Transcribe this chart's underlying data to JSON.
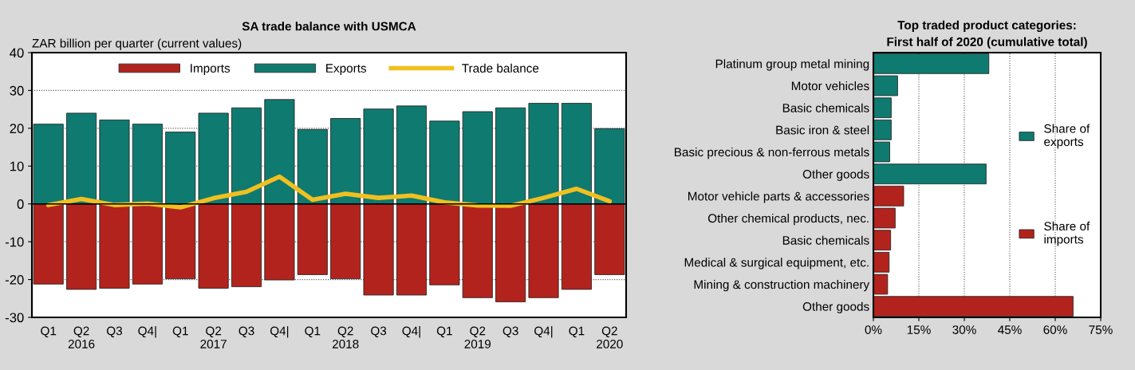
{
  "chart_data": [
    {
      "type": "bar",
      "title": "SA trade balance with USMCA",
      "ylabel": "ZAR billion per quarter (current values)",
      "categories": [
        "Q1",
        "Q2\n2016",
        "Q3",
        "Q4|",
        "Q1",
        "Q2\n2017",
        "Q3",
        "Q4|",
        "Q1",
        "Q2\n2018",
        "Q3",
        "Q4|",
        "Q1",
        "Q2\n2019",
        "Q3",
        "Q4|",
        "Q1",
        "Q2\n2020"
      ],
      "stacked": true,
      "series": [
        {
          "name": "Imports",
          "color": "#b3231d",
          "values": [
            -21.2,
            -22.6,
            -22.3,
            -21.2,
            -19.8,
            -22.3,
            -21.9,
            -20.1,
            -18.7,
            -19.8,
            -24.1,
            -24.1,
            -21.4,
            -24.8,
            -25.9,
            -24.8,
            -22.6,
            -18.7
          ]
        },
        {
          "name": "Exports",
          "color": "#0f7a70",
          "values": [
            21.1,
            24.0,
            22.2,
            21.1,
            19.0,
            24.0,
            25.4,
            27.6,
            19.7,
            22.6,
            25.1,
            25.9,
            21.9,
            24.4,
            25.4,
            26.6,
            26.6,
            19.9
          ]
        },
        {
          "name": "Trade balance",
          "type": "line",
          "color": "#f0c020",
          "values": [
            -0.3,
            1.3,
            -0.3,
            0.1,
            -0.9,
            1.5,
            3.2,
            7.2,
            1.1,
            2.7,
            1.6,
            2.2,
            0.4,
            -0.4,
            -0.5,
            1.6,
            4.0,
            0.7
          ]
        }
      ],
      "ylim": [
        -30,
        40
      ],
      "yticks": [
        -30,
        -20,
        -10,
        0,
        10,
        20,
        30,
        40
      ],
      "grid": "y",
      "legend": "top"
    },
    {
      "type": "bar",
      "orientation": "horizontal",
      "stacked": true,
      "title": "Top traded product categories:\nFirst half of 2020 (cumulative total)",
      "categories": [
        "Platinum group metal mining",
        "Motor vehicles",
        "Basic chemicals",
        "Basic iron & steel",
        "Basic precious & non-ferrous metals",
        "Other goods",
        "Motor vehicle parts & accessories",
        "Other chemical products, nec.",
        "Basic chemicals",
        "Medical & surgical equipment, etc.",
        "Mining & construction machinery",
        "Other goods"
      ],
      "series": [
        {
          "name": "Share of\nexports",
          "color": "#0f7a70",
          "values": [
            38.1,
            8.0,
            5.9,
            5.9,
            5.4,
            37.2,
            null,
            null,
            null,
            null,
            null,
            null
          ]
        },
        {
          "name": "Share of\nimports",
          "color": "#b3231d",
          "values": [
            null,
            null,
            null,
            null,
            null,
            null,
            10.0,
            7.2,
            5.7,
            5.2,
            4.7,
            65.9
          ]
        }
      ],
      "xlim": [
        0,
        75
      ],
      "xticks": [
        {
          "value": 0,
          "label": "0%"
        },
        {
          "value": 15,
          "label": "15%"
        },
        {
          "value": 30,
          "label": "30%"
        },
        {
          "value": 45,
          "label": "45%"
        },
        {
          "value": 60,
          "label": "60%"
        },
        {
          "value": 75,
          "label": "75%"
        }
      ],
      "grid": "x",
      "legend": "right"
    }
  ]
}
